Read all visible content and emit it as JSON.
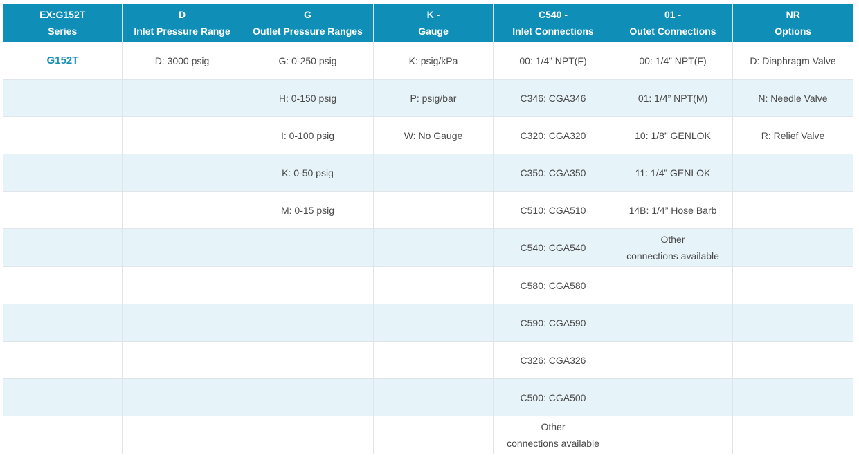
{
  "header": {
    "col1": {
      "line1": "EX:G152T",
      "line2": "Series"
    },
    "col2": {
      "line1": "D",
      "line2": "Inlet Pressure Range"
    },
    "col3": {
      "line1": "G",
      "line2": "Outlet Pressure Ranges"
    },
    "col4": {
      "line1": "K -",
      "line2": "Gauge"
    },
    "col5": {
      "line1": "C540 -",
      "line2": "Inlet Connections"
    },
    "col6": {
      "line1": "01 -",
      "line2": "Outet Connections"
    },
    "col7": {
      "line1": "NR",
      "line2": "Options"
    }
  },
  "rows": [
    {
      "series": "G152T",
      "inlet_pressure": "D: 3000 psig",
      "outlet_pressure": "G: 0-250 psig",
      "gauge": "K: psig/kPa",
      "inlet_conn": "00: 1/4” NPT(F)",
      "outlet_conn": "00: 1/4” NPT(F)",
      "options": "D: Diaphragm Valve"
    },
    {
      "series": "",
      "inlet_pressure": "",
      "outlet_pressure": "H: 0-150 psig",
      "gauge": "P: psig/bar",
      "inlet_conn": "C346: CGA346",
      "outlet_conn": "01: 1/4” NPT(M)",
      "options": "N: Needle Valve"
    },
    {
      "series": "",
      "inlet_pressure": "",
      "outlet_pressure": "I: 0-100 psig",
      "gauge": "W: No Gauge",
      "inlet_conn": "C320: CGA320",
      "outlet_conn": "10: 1/8” GENLOK",
      "options": "R: Relief Valve"
    },
    {
      "series": "",
      "inlet_pressure": "",
      "outlet_pressure": "K: 0-50 psig",
      "gauge": "",
      "inlet_conn": "C350: CGA350",
      "outlet_conn": "11: 1/4” GENLOK",
      "options": ""
    },
    {
      "series": "",
      "inlet_pressure": "",
      "outlet_pressure": "M: 0-15 psig",
      "gauge": "",
      "inlet_conn": "C510: CGA510",
      "outlet_conn": "14B: 1/4” Hose Barb",
      "options": ""
    },
    {
      "series": "",
      "inlet_pressure": "",
      "outlet_pressure": "",
      "gauge": "",
      "inlet_conn": "C540: CGA540",
      "outlet_conn_line1": "Other",
      "outlet_conn_line2": "connections available",
      "options": ""
    },
    {
      "series": "",
      "inlet_pressure": "",
      "outlet_pressure": "",
      "gauge": "",
      "inlet_conn": "C580: CGA580",
      "outlet_conn": "",
      "options": ""
    },
    {
      "series": "",
      "inlet_pressure": "",
      "outlet_pressure": "",
      "gauge": "",
      "inlet_conn": "C590: CGA590",
      "outlet_conn": "",
      "options": ""
    },
    {
      "series": "",
      "inlet_pressure": "",
      "outlet_pressure": "",
      "gauge": "",
      "inlet_conn": "C326: CGA326",
      "outlet_conn": "",
      "options": ""
    },
    {
      "series": "",
      "inlet_pressure": "",
      "outlet_pressure": "",
      "gauge": "",
      "inlet_conn": "C500: CGA500",
      "outlet_conn": "",
      "options": ""
    },
    {
      "series": "",
      "inlet_pressure": "",
      "outlet_pressure": "",
      "gauge": "",
      "inlet_conn_line1": "Other",
      "inlet_conn_line2": "connections available",
      "outlet_conn": "",
      "options": ""
    }
  ],
  "colors": {
    "header_bg": "#0f8fb8",
    "stripe_bg": "#e6f3f8",
    "link": "#1a8fb5"
  }
}
